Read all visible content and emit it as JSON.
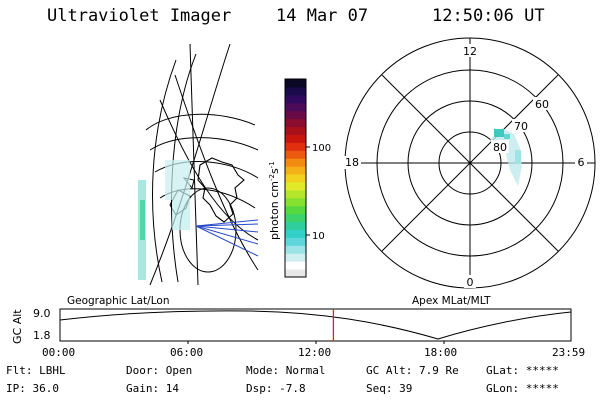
{
  "header": {
    "instrument": "Ultraviolet Imager",
    "date": "14 Mar 07",
    "time": "12:50:06 UT"
  },
  "colorbar": {
    "label": "photon cm",
    "label_sup": "-2",
    "label_s": "s",
    "label_sup2": "-1",
    "tick_100": "100",
    "tick_10": "10",
    "colors": [
      "#e8e8e8",
      "#ffffff",
      "#cfeef0",
      "#9be3e6",
      "#5fd6dc",
      "#33d0c8",
      "#2ecf9c",
      "#3cd36a",
      "#55d93f",
      "#86e030",
      "#b5e62b",
      "#e0ea28",
      "#f2d21f",
      "#f5b018",
      "#f38a12",
      "#ec5a10",
      "#e0300f",
      "#c8160f",
      "#a8101a",
      "#8a0c2e",
      "#6a0a46",
      "#4b0a5a",
      "#300a5e",
      "#1a0a4a",
      "#0a0824"
    ]
  },
  "polar_plot": {
    "mlt_labels": {
      "top": "12",
      "left": "18",
      "right": "6",
      "bottom": "0"
    },
    "lat_labels": [
      "60",
      "70",
      "80"
    ]
  },
  "map_labels": {
    "left": "Geographic Lat/Lon",
    "right": "Apex MLat/MLT"
  },
  "altitude_plot": {
    "ylabel": "GC Alt",
    "ytick_top": "9.0",
    "ytick_bottom": "1.8",
    "xticks": [
      "00:00",
      "06:00",
      "12:00",
      "18:00",
      "23:59"
    ],
    "current_time_fraction": 0.535,
    "marker_color": "#e02020"
  },
  "info": {
    "filter": "Flt: LBHL",
    "ip": "IP: 36.0",
    "door": "Door: Open",
    "gain": "Gain: 14",
    "mode": "Mode: Normal",
    "dsp": "Dsp:   -7.8",
    "gcalt": "GC Alt: 7.9 Re",
    "seq": "Seq: 39",
    "glat": "GLat: *****",
    "glon": "GLon: *****"
  }
}
